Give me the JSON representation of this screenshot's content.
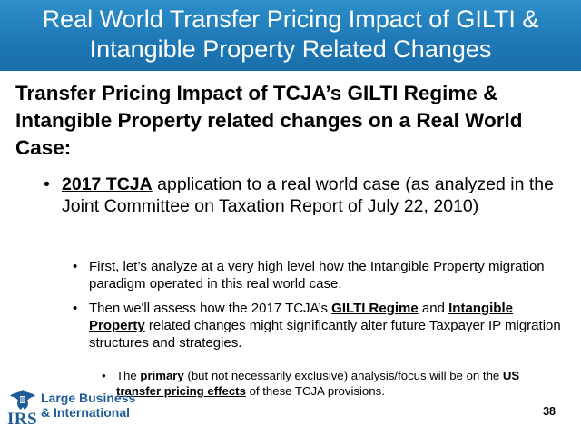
{
  "slide": {
    "title_line1": "Real World Transfer Pricing Impact of GILTI &",
    "title_line2": "Intangible Property Related Changes",
    "heading": "Transfer Pricing Impact of TCJA’s GILTI Regime & Intangible Property related changes on a Real World Case:",
    "bullet_symbol": "•",
    "bullet1": {
      "bold": "2017 TCJA",
      "rest": " application to a real world case (as analyzed in the Joint Committee on Taxation Report of July 22, 2010)"
    },
    "bullet2a": "First, let’s analyze at a very high level how the Intangible Property migration paradigm operated in this real world case.",
    "bullet2b": {
      "part1": "Then we'll assess how the 2017 TCJA’s ",
      "bold1": "GILTI Regime",
      "part2": " and ",
      "bold2": "Intangible Property",
      "part3": " related changes might significantly alter future Taxpayer IP migration structures and strategies."
    },
    "bullet3": {
      "part1": "The ",
      "bold1": "primary",
      "part2": " (but ",
      "u1": "not",
      "part3": " necessarily exclusive) analysis/focus will be on the ",
      "bold2": "US transfer pricing effects",
      "part4": " of these TCJA provisions."
    },
    "logo": {
      "irs": "IRS",
      "line1": "Large Business",
      "line2": "& International"
    },
    "page_number": "38"
  },
  "colors": {
    "title_bar": "#1e78b5",
    "logo_blue": "#1e5c98"
  }
}
